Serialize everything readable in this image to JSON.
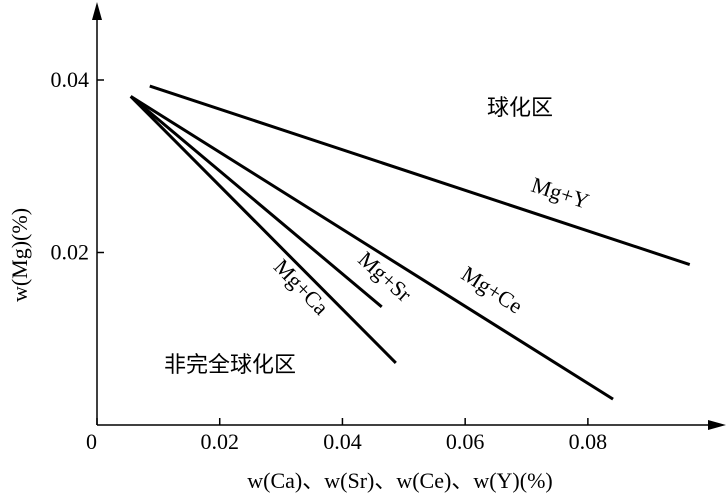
{
  "chart_data": {
    "type": "line",
    "x_label": "w(Ca)、w(Sr)、w(Ce)、w(Y)(%)",
    "y_label": "w(Mg)(%)",
    "annotations": [
      "球化区",
      "非完全球化区"
    ],
    "color": "#000000",
    "series": [
      {
        "name": "Mg+Y",
        "x": [
          0.0086,
          0.0966
        ],
        "values": [
          0.0393,
          0.0186
        ]
      },
      {
        "name": "Mg+Ce",
        "x": [
          0.0055,
          0.0841
        ],
        "values": [
          0.0381,
          0.003
        ]
      },
      {
        "name": "Mg+Sr",
        "x": [
          0.0055,
          0.0464
        ],
        "values": [
          0.0381,
          0.0137
        ]
      },
      {
        "name": "Mg+Ca",
        "x": [
          0.0055,
          0.0487
        ],
        "values": [
          0.0381,
          0.0072
        ]
      }
    ],
    "xlim": [
      0,
      0.1
    ],
    "ylim": [
      0,
      0.048
    ],
    "xticks": [
      0,
      0.02,
      0.04,
      0.06,
      0.08
    ],
    "yticks": [
      0.02,
      0.04
    ]
  }
}
